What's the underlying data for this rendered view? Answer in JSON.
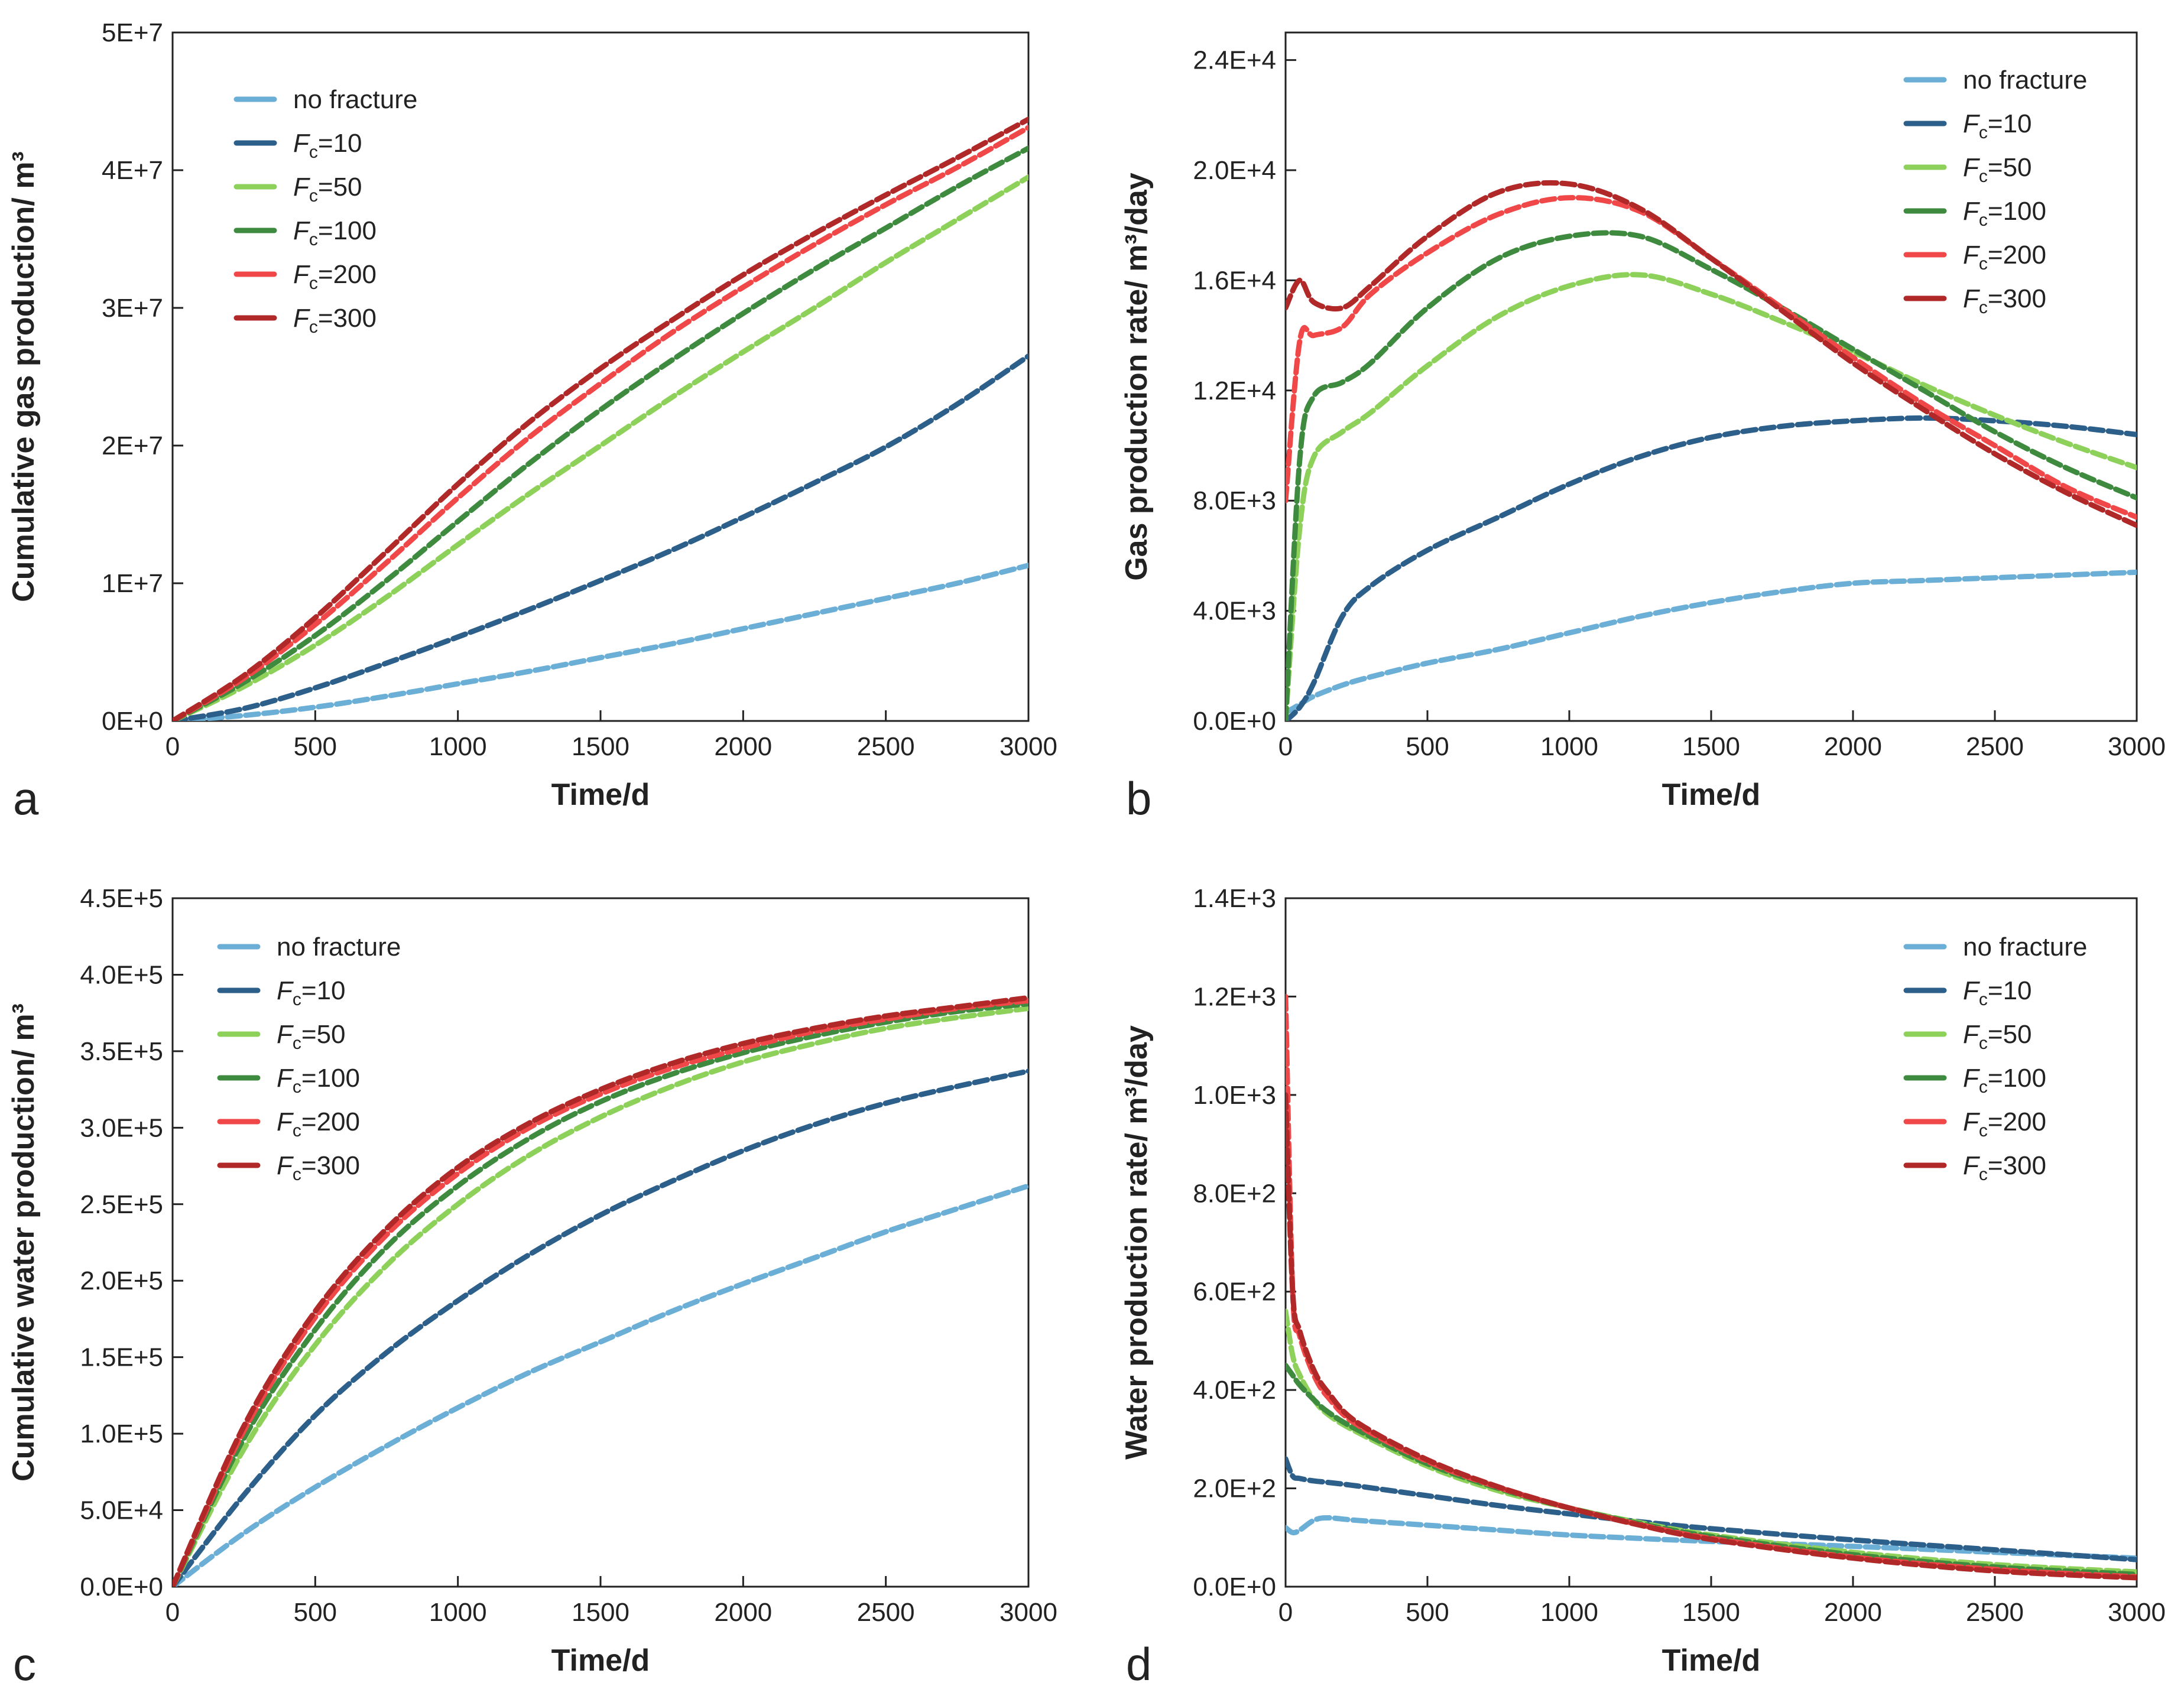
{
  "legend": {
    "labels": [
      "no fracture",
      "=10",
      "=50",
      "=100",
      "=200",
      "=300"
    ],
    "fc_symbol": "F",
    "fc_subscript": "c"
  },
  "series_colors": [
    "#6BAED6",
    "#2C5F8A",
    "#8DD15A",
    "#3E8A3E",
    "#F04848",
    "#B02828"
  ],
  "chart_data": [
    {
      "panel": "a",
      "type": "line",
      "title": "",
      "xlabel": "Time/d",
      "ylabel": "Cumulative gas production/ m³",
      "xlim": [
        0,
        3000
      ],
      "ylim": [
        0,
        50000000
      ],
      "xticks": [
        0,
        500,
        1000,
        1500,
        2000,
        2500,
        3000
      ],
      "xtick_labels": [
        "0",
        "500",
        "1000",
        "1500",
        "2000",
        "2500",
        "3000"
      ],
      "yticks": [
        0,
        10000000,
        20000000,
        30000000,
        40000000,
        50000000
      ],
      "ytick_labels": [
        "0E+0",
        "1E+7",
        "2E+7",
        "3E+7",
        "4E+7",
        "5E+7"
      ],
      "legend_position": "top-left",
      "grid": false,
      "x": [
        0,
        250,
        500,
        750,
        1000,
        1250,
        1500,
        1750,
        2000,
        2250,
        2500,
        2750,
        3000
      ],
      "series": [
        {
          "name": "no fracture",
          "values": [
            0,
            400000,
            1000000,
            1800000,
            2700000,
            3600000,
            4600000,
            5600000,
            6700000,
            7800000,
            8900000,
            10000000,
            11300000
          ]
        },
        {
          "name": "Fc=10",
          "values": [
            0,
            900000,
            2400000,
            4200000,
            6100000,
            8100000,
            10200000,
            12400000,
            14800000,
            17300000,
            19900000,
            23000000,
            26500000
          ]
        },
        {
          "name": "Fc=50",
          "values": [
            0,
            2500000,
            5500000,
            9000000,
            12800000,
            16500000,
            20000000,
            23500000,
            26800000,
            30000000,
            33300000,
            36400000,
            39500000
          ]
        },
        {
          "name": "Fc=100",
          "values": [
            0,
            2800000,
            6200000,
            10200000,
            14500000,
            18700000,
            22600000,
            26200000,
            29600000,
            32800000,
            35800000,
            38800000,
            41600000
          ]
        },
        {
          "name": "Fc=200",
          "values": [
            0,
            3100000,
            7000000,
            11500000,
            16200000,
            20600000,
            24500000,
            28200000,
            31500000,
            34600000,
            37500000,
            40200000,
            43100000
          ]
        },
        {
          "name": "Fc=300",
          "values": [
            0,
            3300000,
            7500000,
            12300000,
            17200000,
            21700000,
            25600000,
            29100000,
            32400000,
            35400000,
            38200000,
            40900000,
            43700000
          ]
        }
      ]
    },
    {
      "panel": "b",
      "type": "line",
      "title": "",
      "xlabel": "Time/d",
      "ylabel": "Gas production rate/ m³/day",
      "xlim": [
        0,
        3000
      ],
      "ylim": [
        0,
        25000
      ],
      "xticks": [
        0,
        500,
        1000,
        1500,
        2000,
        2500,
        3000
      ],
      "xtick_labels": [
        "0",
        "500",
        "1000",
        "1500",
        "2000",
        "2500",
        "3000"
      ],
      "yticks": [
        0,
        4000,
        8000,
        12000,
        16000,
        20000,
        24000
      ],
      "ytick_labels": [
        "0.0E+0",
        "4.0E+3",
        "8.0E+3",
        "1.2E+4",
        "1.6E+4",
        "2.0E+4",
        "2.4E+4"
      ],
      "legend_position": "top-right",
      "grid": false,
      "x": [
        0,
        50,
        100,
        200,
        300,
        500,
        750,
        1000,
        1250,
        1500,
        1750,
        2000,
        2250,
        2500,
        2750,
        3000
      ],
      "series": [
        {
          "name": "no fracture",
          "values": [
            300,
            600,
            900,
            1300,
            1600,
            2100,
            2600,
            3200,
            3800,
            4300,
            4700,
            5000,
            5100,
            5200,
            5300,
            5400
          ]
        },
        {
          "name": "Fc=10",
          "values": [
            0,
            500,
            1400,
            3800,
            4900,
            6200,
            7400,
            8600,
            9600,
            10300,
            10700,
            10900,
            11000,
            10900,
            10700,
            10400
          ]
        },
        {
          "name": "Fc=50",
          "values": [
            0,
            7000,
            9600,
            10500,
            11200,
            12900,
            14700,
            15800,
            16200,
            15500,
            14500,
            13400,
            12200,
            11100,
            10100,
            9200
          ]
        },
        {
          "name": "Fc=100",
          "values": [
            0,
            9500,
            11800,
            12300,
            13000,
            15000,
            16800,
            17600,
            17600,
            16400,
            15000,
            13500,
            12000,
            10500,
            9200,
            8100
          ]
        },
        {
          "name": "Fc=200",
          "values": [
            8000,
            13800,
            14000,
            14300,
            15500,
            17000,
            18400,
            19000,
            18500,
            16800,
            15000,
            13200,
            11500,
            10000,
            8500,
            7400
          ]
        },
        {
          "name": "Fc=300",
          "values": [
            15000,
            16000,
            15200,
            15000,
            15800,
            17600,
            19200,
            19500,
            18600,
            16800,
            14900,
            13000,
            11300,
            9700,
            8300,
            7100
          ]
        }
      ]
    },
    {
      "panel": "c",
      "type": "line",
      "title": "",
      "xlabel": "Time/d",
      "ylabel": "Cumulative water production/ m³",
      "xlim": [
        0,
        3000
      ],
      "ylim": [
        0,
        450000
      ],
      "xticks": [
        0,
        500,
        1000,
        1500,
        2000,
        2500,
        3000
      ],
      "xtick_labels": [
        "0",
        "500",
        "1000",
        "1500",
        "2000",
        "2500",
        "3000"
      ],
      "yticks": [
        0,
        50000,
        100000,
        150000,
        200000,
        250000,
        300000,
        350000,
        400000,
        450000
      ],
      "ytick_labels": [
        "0.0E+0",
        "5.0E+4",
        "1.0E+5",
        "1.5E+5",
        "2.0E+5",
        "2.5E+5",
        "3.0E+5",
        "3.5E+5",
        "4.0E+5",
        "4.5E+5"
      ],
      "legend_position": "top-left",
      "grid": false,
      "x": [
        0,
        250,
        500,
        750,
        1000,
        1250,
        1500,
        1750,
        2000,
        2250,
        2500,
        2750,
        3000
      ],
      "series": [
        {
          "name": "no fracture",
          "values": [
            0,
            35000,
            65000,
            92000,
            117000,
            140000,
            160000,
            180000,
            198000,
            215000,
            232000,
            247000,
            262000
          ]
        },
        {
          "name": "Fc=10",
          "values": [
            0,
            60000,
            112000,
            153000,
            187000,
            217000,
            243000,
            265000,
            285000,
            302000,
            316000,
            327000,
            337000
          ]
        },
        {
          "name": "Fc=50",
          "values": [
            0,
            90000,
            158000,
            210000,
            250000,
            282000,
            307000,
            327000,
            343000,
            355000,
            365000,
            372000,
            378000
          ]
        },
        {
          "name": "Fc=100",
          "values": [
            0,
            97000,
            168000,
            222000,
            262000,
            293000,
            317000,
            335000,
            349000,
            360000,
            369000,
            376000,
            381000
          ]
        },
        {
          "name": "Fc=200",
          "values": [
            0,
            102000,
            176000,
            230000,
            270000,
            300000,
            322000,
            339000,
            352000,
            363000,
            371000,
            378000,
            383000
          ]
        },
        {
          "name": "Fc=300",
          "values": [
            0,
            105000,
            180000,
            234000,
            274000,
            303000,
            325000,
            342000,
            355000,
            365000,
            373000,
            379000,
            385000
          ]
        }
      ]
    },
    {
      "panel": "d",
      "type": "line",
      "title": "",
      "xlabel": "Time/d",
      "ylabel": "Water production rate/ m³/day",
      "xlim": [
        0,
        3000
      ],
      "ylim": [
        0,
        1400
      ],
      "xticks": [
        0,
        500,
        1000,
        1500,
        2000,
        2500,
        3000
      ],
      "xtick_labels": [
        "0",
        "500",
        "1000",
        "1500",
        "2000",
        "2500",
        "3000"
      ],
      "yticks": [
        0,
        200,
        400,
        600,
        800,
        1000,
        1200,
        1400
      ],
      "ytick_labels": [
        "0.0E+0",
        "2.0E+2",
        "4.0E+2",
        "6.0E+2",
        "8.0E+2",
        "1.0E+3",
        "1.2E+3",
        "1.4E+3"
      ],
      "legend_position": "top-right",
      "grid": false,
      "x": [
        0,
        25,
        50,
        100,
        150,
        250,
        500,
        750,
        1000,
        1250,
        1500,
        2000,
        2500,
        3000
      ],
      "series": [
        {
          "name": "no fracture",
          "values": [
            120,
            110,
            115,
            135,
            140,
            135,
            125,
            115,
            105,
            98,
            92,
            82,
            70,
            58
          ]
        },
        {
          "name": "Fc=10",
          "values": [
            260,
            225,
            220,
            215,
            212,
            205,
            185,
            165,
            148,
            132,
            118,
            95,
            75,
            55
          ]
        },
        {
          "name": "Fc=50",
          "values": [
            560,
            470,
            430,
            380,
            350,
            315,
            245,
            195,
            160,
            130,
            105,
            70,
            45,
            30
          ]
        },
        {
          "name": "Fc=100",
          "values": [
            450,
            430,
            410,
            380,
            355,
            320,
            250,
            200,
            160,
            128,
            102,
            65,
            40,
            25
          ]
        },
        {
          "name": "Fc=200",
          "values": [
            1200,
            600,
            510,
            430,
            385,
            330,
            255,
            202,
            160,
            126,
            98,
            60,
            35,
            20
          ]
        },
        {
          "name": "Fc=300",
          "values": [
            1000,
            600,
            520,
            440,
            395,
            335,
            258,
            203,
            160,
            125,
            96,
            58,
            32,
            18
          ]
        }
      ]
    }
  ]
}
